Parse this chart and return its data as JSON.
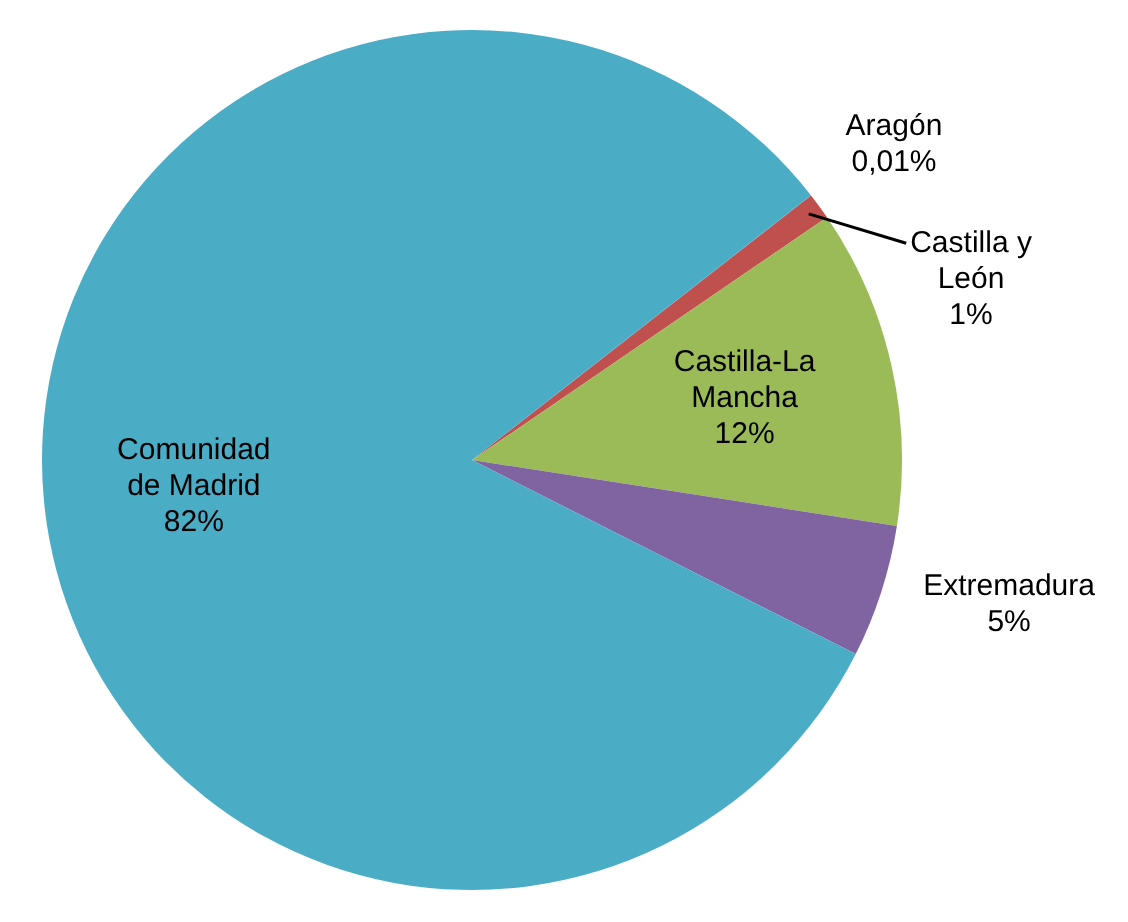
{
  "chart_data": {
    "type": "pie",
    "categories": [
      "Aragón",
      "Castilla y León",
      "Castilla-La Mancha",
      "Extremadura",
      "Comunidad de Madrid"
    ],
    "values": [
      0.01,
      1,
      12,
      5,
      82
    ],
    "colors": [
      "#4f81bd",
      "#c0504d",
      "#9bbb59",
      "#8064a2",
      "#4bacc6"
    ],
    "value_labels": [
      "0,01%",
      "1%",
      "12%",
      "5%",
      "82%"
    ],
    "legend": false
  }
}
